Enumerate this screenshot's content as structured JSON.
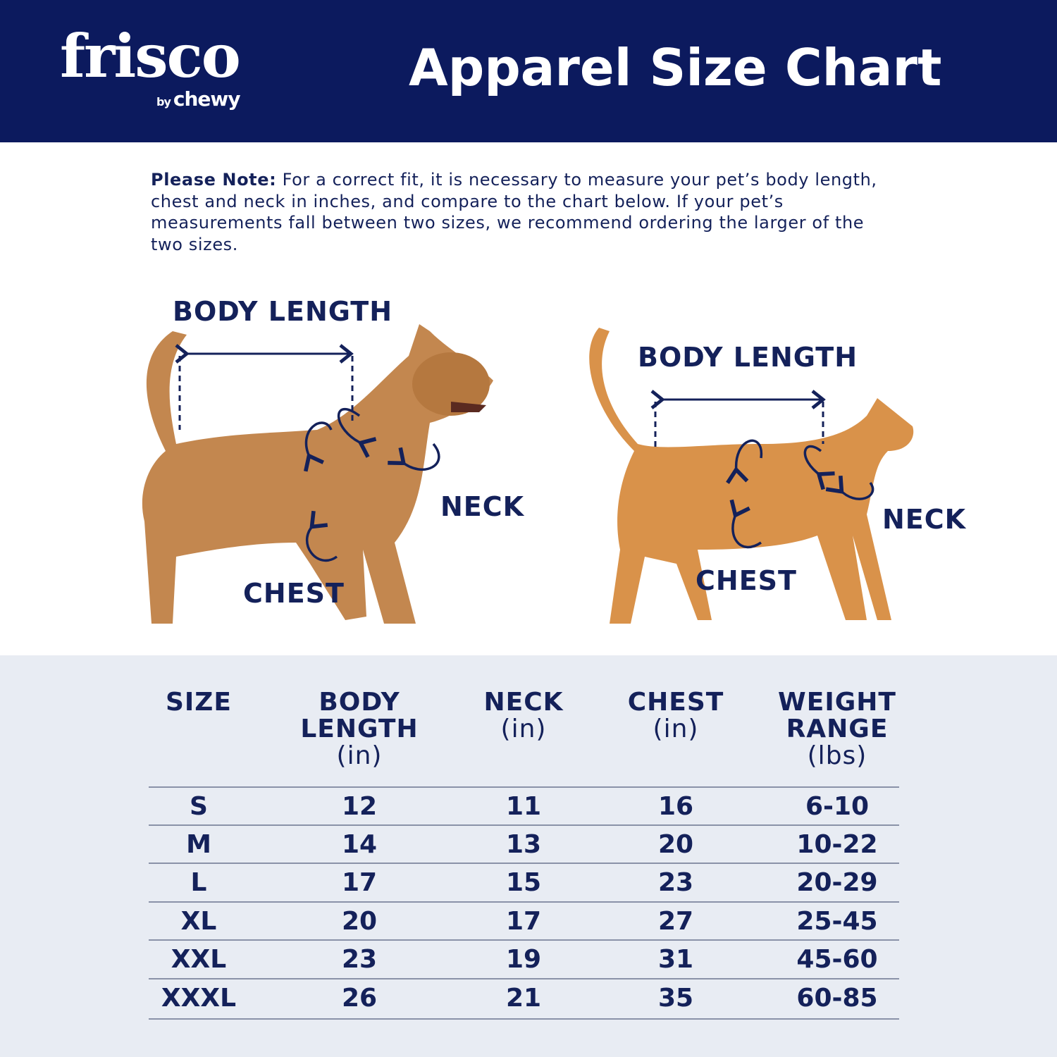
{
  "header": {
    "logo": "frisco",
    "logo_sub_by": "by",
    "logo_sub_brand": "chewy",
    "title": "Apparel Size Chart"
  },
  "note": {
    "label": "Please Note:",
    "text": " For a correct fit, it is necessary to measure your pet’s body length, chest and neck in inches, and compare to the chart below. If your pet’s measurements fall between two sizes, we recommend ordering the larger of the two sizes."
  },
  "dog": {
    "body_length": "BODY LENGTH",
    "neck": "NECK",
    "chest": "CHEST"
  },
  "cat": {
    "body_length": "BODY LENGTH",
    "neck": "NECK",
    "chest": "CHEST"
  },
  "colors": {
    "navy": "#0c1a5e",
    "table_bg": "#e8ecf3"
  },
  "table": {
    "headers": [
      {
        "title": "SIZE",
        "unit": ""
      },
      {
        "title": "BODY LENGTH",
        "unit": "(in)"
      },
      {
        "title": "NECK",
        "unit": "(in)"
      },
      {
        "title": "CHEST",
        "unit": "(in)"
      },
      {
        "title": "WEIGHT RANGE",
        "unit": "(lbs)"
      }
    ],
    "rows": [
      [
        "S",
        "12",
        "11",
        "16",
        "6-10"
      ],
      [
        "M",
        "14",
        "13",
        "20",
        "10-22"
      ],
      [
        "L",
        "17",
        "15",
        "23",
        "20-29"
      ],
      [
        "XL",
        "20",
        "17",
        "27",
        "25-45"
      ],
      [
        "XXL",
        "23",
        "19",
        "31",
        "45-60"
      ],
      [
        "XXXL",
        "26",
        "21",
        "35",
        "60-85"
      ]
    ]
  }
}
